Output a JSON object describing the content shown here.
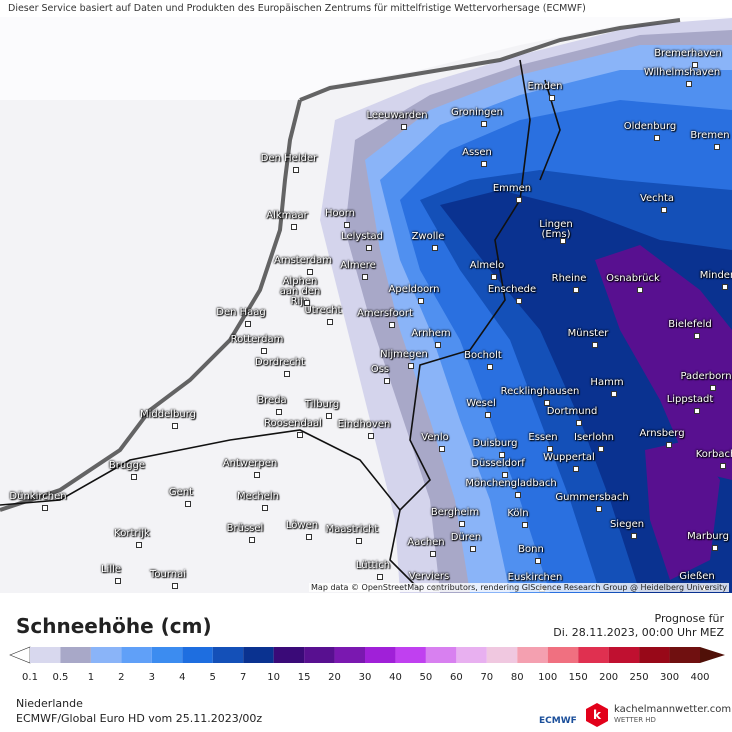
{
  "header": {
    "disclaimer": "Dieser Service basiert auf Daten und Produkten des Europäischen Zentrums für mittelfristige Wettervorhersage (ECMWF)"
  },
  "map": {
    "cities": [
      "Bremerhaven",
      "Wilhelmshaven",
      "Emden",
      "Leeuwarden",
      "Groningen",
      "Oldenburg",
      "Bremen",
      "Den Helder",
      "Assen",
      "Emmen",
      "Vechta",
      "Alkmaar",
      "Hoorn",
      "Lingen (Ems)",
      "Lelystad",
      "Zwolle",
      "Minden",
      "Amsterdam",
      "Almere",
      "Almelo",
      "Rheine",
      "Osnabrück",
      "Alphen aan den Rijn",
      "Apeldoorn",
      "Enschede",
      "Den Haag",
      "Utrecht",
      "Amersfoort",
      "Bielefeld",
      "Arnhem",
      "Münster",
      "Rotterdam",
      "Nijmegen",
      "Bocholt",
      "Dordrecht",
      "Oss",
      "Paderborn",
      "Hamm",
      "Recklinghausen",
      "Lippstadt",
      "Breda",
      "Tilburg",
      "Wesel",
      "Dortmund",
      "Middelburg",
      "Roosendaal",
      "Eindhoven",
      "Venlo",
      "Essen",
      "Iserlohn",
      "Arnsberg",
      "Duisburg",
      "Korbach",
      "Wuppertal",
      "Düsseldorf",
      "Brugge",
      "Antwerpen",
      "Mönchengladbach",
      "Gent",
      "Gummersbach",
      "Dünkirchen",
      "Mecheln",
      "Bergheim",
      "Köln",
      "Kortrijk",
      "Brüssel",
      "Löwen",
      "Maastricht",
      "Siegen",
      "Düren",
      "Marburg",
      "Aachen",
      "Bonn",
      "Lille",
      "Tournai",
      "Lüttich",
      "Verviers",
      "Euskirchen",
      "Gießen"
    ],
    "attribution": "Map data © OpenStreetMap contributors, rendering GIScience Research Group @ Heidelberg University"
  },
  "legend": {
    "title": "Schneehöhe (cm)",
    "values": [
      0.1,
      0.5,
      1,
      2,
      3,
      4,
      5,
      7,
      10,
      15,
      20,
      30,
      40,
      50,
      60,
      70,
      80,
      100,
      150,
      200,
      250,
      300,
      400
    ],
    "colors": [
      "#d8d8ee",
      "#a8a8c8",
      "#8ab4f8",
      "#60a0f8",
      "#3c8cf0",
      "#1e6ee0",
      "#1450b8",
      "#0a3290",
      "#3a0a78",
      "#581090",
      "#7a18b0",
      "#a020d8",
      "#c040f0",
      "#d880f0",
      "#e8b0f0",
      "#f0c8e0",
      "#f4a0b0",
      "#f07080",
      "#e03050",
      "#c01030",
      "#980818",
      "#701010",
      "#501008"
    ]
  },
  "forecast": {
    "label": "Prognose für",
    "date": "Di. 28.11.2023, 00:00 Uhr MEZ"
  },
  "footer": {
    "region": "Niederlande",
    "model": "ECMWF/Global Euro HD vom  25.11.2023/00z",
    "logo_ecmwf": "ECMWF",
    "site": "kachelmannwetter.com",
    "site_sub": "WETTER HD"
  }
}
